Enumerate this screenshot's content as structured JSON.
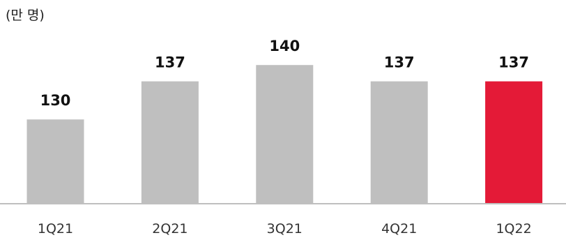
{
  "chart_data": {
    "type": "bar",
    "unit_label": "(만 명)",
    "categories": [
      "1Q21",
      "2Q21",
      "3Q21",
      "4Q21",
      "1Q22"
    ],
    "values": [
      130,
      137,
      140,
      137,
      137
    ],
    "value_labels": [
      "130",
      "137",
      "140",
      "137",
      "137"
    ],
    "ylim": [
      114.5,
      141.7
    ],
    "grid": false,
    "legend": "none",
    "colors": {
      "default_bar": "#bfbfbf",
      "highlight_bar": "#e41a37",
      "axis": "#bfbfbf"
    },
    "highlight_index": 4
  }
}
